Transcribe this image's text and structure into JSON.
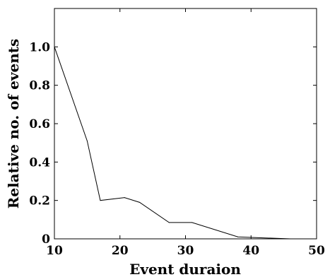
{
  "chart_data": {
    "type": "line",
    "xlabel": "Event duraion",
    "ylabel": "Relative no. of events",
    "xlim": [
      10,
      50
    ],
    "ylim": [
      0,
      1.2
    ],
    "xticks": [
      10,
      20,
      30,
      40,
      50
    ],
    "xtick_labels": [
      "10",
      "20",
      "30",
      "40",
      "50"
    ],
    "yticks": [
      0,
      0.2,
      0.4,
      0.6,
      0.8,
      1.0
    ],
    "ytick_labels": [
      "0",
      "0.2",
      "0.4",
      "0.6",
      "0.8",
      "1.0"
    ],
    "grid": false,
    "series": [
      {
        "color": "#000000",
        "x": [
          10,
          15,
          17,
          20.7,
          23,
          27.5,
          31,
          38,
          46
        ],
        "y": [
          1.0,
          0.51,
          0.2,
          0.215,
          0.19,
          0.085,
          0.085,
          0.01,
          0.0
        ]
      }
    ]
  }
}
